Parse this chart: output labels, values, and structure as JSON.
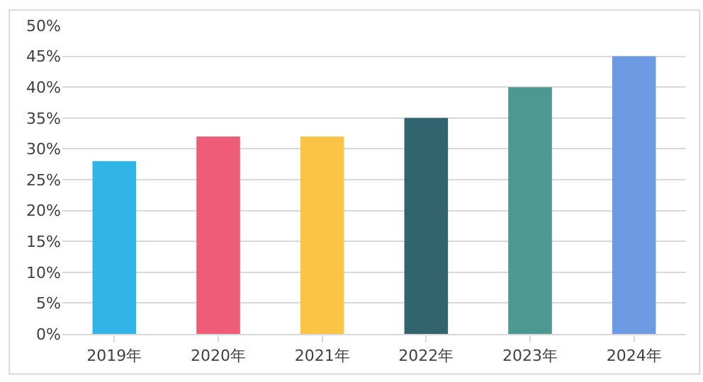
{
  "chart_data": {
    "type": "bar",
    "categories": [
      "2019年",
      "2020年",
      "2021年",
      "2022年",
      "2023年",
      "2024年"
    ],
    "values": [
      28,
      32,
      32,
      35,
      40,
      45
    ],
    "colors": [
      "#31b5e6",
      "#ee5c78",
      "#fbc445",
      "#32646f",
      "#4e9892",
      "#6c9be4"
    ],
    "ylim": [
      0,
      50
    ],
    "yticks": [
      {
        "value": 0,
        "label": "0%"
      },
      {
        "value": 5,
        "label": "5%"
      },
      {
        "value": 10,
        "label": "10%"
      },
      {
        "value": 15,
        "label": "15%"
      },
      {
        "value": 20,
        "label": "20%"
      },
      {
        "value": 25,
        "label": "25%"
      },
      {
        "value": 30,
        "label": "30%"
      },
      {
        "value": 35,
        "label": "35%"
      },
      {
        "value": 40,
        "label": "40%"
      },
      {
        "value": 45,
        "label": "45%"
      },
      {
        "value": 50,
        "label": "50%"
      }
    ],
    "grid": "y"
  }
}
